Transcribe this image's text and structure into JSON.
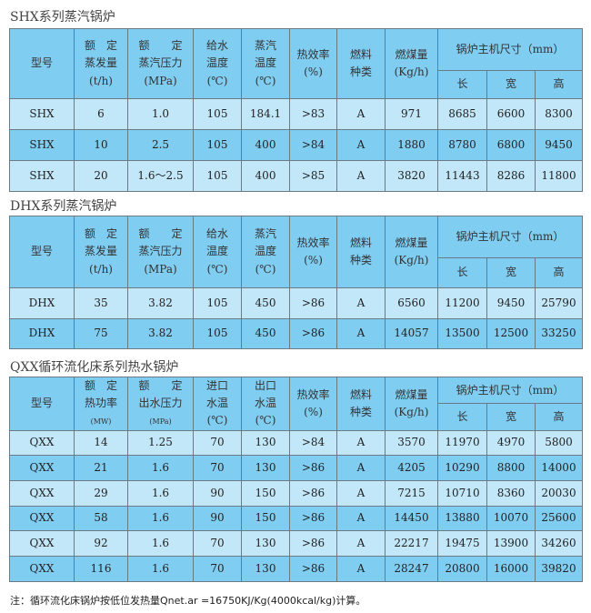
{
  "colors": {
    "header": "#80cdf2",
    "row_light": "#c2e7f9",
    "row_dark": "#80cdf2"
  },
  "sections": [
    {
      "title": "SHX系列蒸汽锅炉",
      "headers": [
        "型号",
        "额　定\n蒸发量\n(t/h)",
        "额　　定\n蒸汽压力\n(MPa)",
        "给水\n温度\n(℃)",
        "蒸汽\n温度\n(℃)",
        "热效率\n(%)",
        "燃料\n种类",
        "燃煤量\n(Kg/h)"
      ],
      "dim_header": "锅炉主机尺寸（mm）",
      "dims": [
        "长",
        "宽",
        "高"
      ],
      "rows": [
        [
          "SHX",
          "6",
          "1.0",
          "105",
          "184.1",
          ">83",
          "A",
          "971",
          "8685",
          "6600",
          "8300"
        ],
        [
          "SHX",
          "10",
          "2.5",
          "105",
          "400",
          ">84",
          "A",
          "1880",
          "8780",
          "6800",
          "9450"
        ],
        [
          "SHX",
          "20",
          "1.6～2.5",
          "105",
          "400",
          ">85",
          "A",
          "3820",
          "11443",
          "8286",
          "11800"
        ]
      ]
    },
    {
      "title": "DHX系列蒸汽锅炉",
      "headers": [
        "型号",
        "额　定\n蒸发量\n(t/h)",
        "额　　定\n蒸汽压力\n(MPa)",
        "给水\n温度\n(℃)",
        "蒸汽\n温度\n(℃)",
        "热效率\n(%)",
        "燃料\n种类",
        "燃煤量\n(Kg/h)"
      ],
      "dim_header": "锅炉主机尺寸（mm）",
      "dims": [
        "长",
        "宽",
        "高"
      ],
      "rows": [
        [
          "DHX",
          "35",
          "3.82",
          "105",
          "450",
          ">86",
          "A",
          "6560",
          "11200",
          "9450",
          "25790"
        ],
        [
          "DHX",
          "75",
          "3.82",
          "105",
          "450",
          ">86",
          "A",
          "14057",
          "13500",
          "12500",
          "33250"
        ]
      ]
    },
    {
      "title": "QXX循环流化床系列热水锅炉",
      "headers": [
        "型号",
        "额　定\n热功率\n(MW)",
        "额　　定\n出水压力\n(MPa)",
        "进口\n水温\n(℃)",
        "出口\n水温\n(℃)",
        "热效率\n(%)",
        "燃料\n种类",
        "燃煤量\n(Kg/h)"
      ],
      "dim_header": "锅炉主机尺寸（mm）",
      "dims": [
        "长",
        "宽",
        "高"
      ],
      "rows": [
        [
          "QXX",
          "14",
          "1.25",
          "70",
          "130",
          ">84",
          "A",
          "3570",
          "11970",
          "4970",
          "5800"
        ],
        [
          "QXX",
          "21",
          "1.6",
          "70",
          "130",
          ">86",
          "A",
          "4205",
          "10290",
          "8800",
          "14000"
        ],
        [
          "QXX",
          "29",
          "1.6",
          "90",
          "150",
          ">86",
          "A",
          "7215",
          "10710",
          "8360",
          "20030"
        ],
        [
          "QXX",
          "58",
          "1.6",
          "90",
          "150",
          ">86",
          "A",
          "14450",
          "13880",
          "10070",
          "25600"
        ],
        [
          "QXX",
          "92",
          "1.6",
          "70",
          "130",
          ">86",
          "A",
          "22217",
          "19475",
          "13900",
          "34260"
        ],
        [
          "QXX",
          "116",
          "1.6",
          "70",
          "130",
          ">86",
          "A",
          "28247",
          "20800",
          "16000",
          "39820"
        ]
      ]
    }
  ],
  "note": "注：循环流化床锅炉按低位发热量Qnet.ar =16750KJ/Kg(4000kcal/kg)计算。"
}
